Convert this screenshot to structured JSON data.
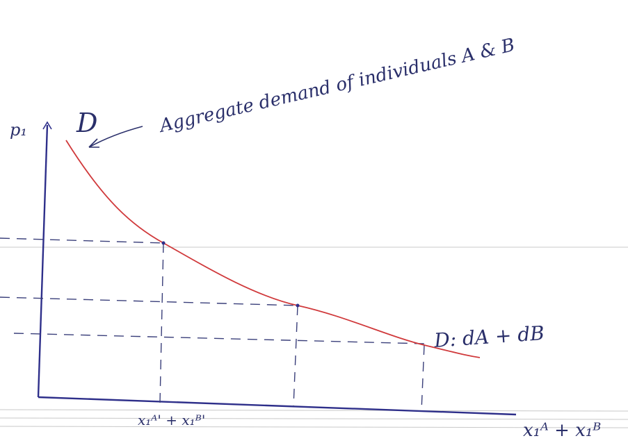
{
  "annotation": "Aggregate demand of individuals A & B",
  "curve_label": "D",
  "y_axis_label": "p₁",
  "curve_equation": "D: dA + dB",
  "x_tick_label": "x₁ᴬ' + x₁ᴮ'",
  "x_axis_label": "x₁ᴬ + x₁ᴮ"
}
